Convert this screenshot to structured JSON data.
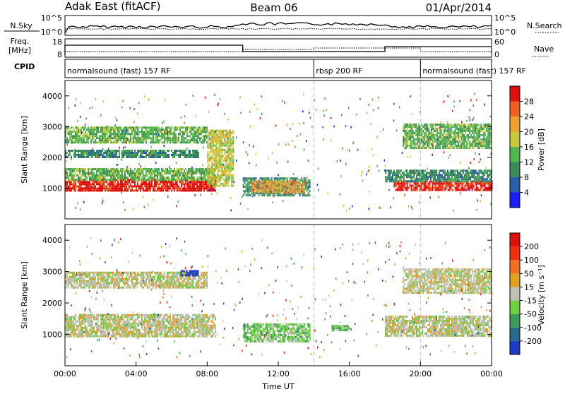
{
  "header": {
    "radar": "Adak East (fitACF)",
    "beam": "Beam 06",
    "date": "01/Apr/2014"
  },
  "noise_panel": {
    "left_label": "N.Sky",
    "left_ticks": [
      "10^5",
      "10^0"
    ],
    "right_ticks": [
      "10^5",
      "10^0"
    ],
    "right_label": "N.Search"
  },
  "freq_panel": {
    "left_label_1": "Freq.",
    "left_label_2": "[MHz]",
    "left_ticks": [
      "18",
      "8"
    ],
    "right_ticks": [
      "60",
      "0"
    ],
    "right_label": "Nave"
  },
  "cpid_panel": {
    "label": "CPID",
    "segments": [
      {
        "text": "normalsound (fast) 157 RF",
        "start": 0,
        "end": 14
      },
      {
        "text": "rbsp 200 RF",
        "start": 14,
        "end": 20
      },
      {
        "text": "normalsound (fast) 157 RF",
        "start": 20,
        "end": 24
      }
    ]
  },
  "power_panel": {
    "ylabel": "Slant Range [km]",
    "yticks": [
      "1000",
      "2000",
      "3000",
      "4000"
    ],
    "colorbar_label": "Power [dB]",
    "colorbar_ticks": [
      "4",
      "8",
      "12",
      "16",
      "20",
      "24",
      "28"
    ],
    "colors": [
      "#1c1cff",
      "#2a5fa8",
      "#3c8c5a",
      "#50b850",
      "#c8c83c",
      "#f0a030",
      "#f06020",
      "#e01010"
    ]
  },
  "velocity_panel": {
    "ylabel": "Slant Range [km]",
    "yticks": [
      "1000",
      "2000",
      "3000",
      "4000"
    ],
    "colorbar_label": "Velocity [m s⁻¹]",
    "colorbar_ticks": [
      "200",
      "100",
      "50",
      "15",
      "-15",
      "-50",
      "-100",
      "-200"
    ],
    "colors": [
      "#1c3cc8",
      "#2a6a8c",
      "#3c9c5a",
      "#6cd040",
      "#c0c0b8",
      "#e0a020",
      "#f07020",
      "#f03010",
      "#e01010"
    ]
  },
  "time_axis": {
    "label": "Time UT",
    "ticks": [
      "00:00",
      "04:00",
      "08:00",
      "12:00",
      "16:00",
      "20:00",
      "00:00"
    ]
  },
  "chart_data": {
    "type": "heatmap",
    "title": "Adak East (fitACF)",
    "x_unit": "hours UT",
    "xlim": [
      0,
      24
    ],
    "ylim": [
      0,
      4500
    ],
    "power_bands": [
      {
        "x0": 0,
        "x1": 8.5,
        "y0": 950,
        "y1": 1300,
        "level": 7
      },
      {
        "x0": 0,
        "x1": 8.5,
        "y0": 1300,
        "y1": 1650,
        "level": 3
      },
      {
        "x0": 0,
        "x1": 7.5,
        "y0": 2000,
        "y1": 2250,
        "level": 2
      },
      {
        "x0": 0,
        "x1": 8,
        "y0": 2500,
        "y1": 3000,
        "level": 3
      },
      {
        "x0": 8,
        "x1": 9.5,
        "y0": 1100,
        "y1": 2900,
        "level": 4
      },
      {
        "x0": 10,
        "x1": 13.8,
        "y0": 780,
        "y1": 1350,
        "level": 2
      },
      {
        "x0": 10.5,
        "x1": 13.5,
        "y0": 900,
        "y1": 1250,
        "level": 5
      },
      {
        "x0": 18.5,
        "x1": 24,
        "y0": 950,
        "y1": 1250,
        "level": 7
      },
      {
        "x0": 18,
        "x1": 24,
        "y0": 1250,
        "y1": 1600,
        "level": 2
      },
      {
        "x0": 19,
        "x1": 24,
        "y0": 2300,
        "y1": 3100,
        "level": 3
      }
    ],
    "velocity_bands": [
      {
        "x0": 0,
        "x1": 8.5,
        "y0": 950,
        "y1": 1650,
        "level": 4
      },
      {
        "x0": 0,
        "x1": 8,
        "y0": 2500,
        "y1": 3000,
        "level": 4
      },
      {
        "x0": 6.5,
        "x1": 7.5,
        "y0": 2850,
        "y1": 3050,
        "level": 0
      },
      {
        "x0": 10,
        "x1": 13.8,
        "y0": 800,
        "y1": 1350,
        "level": 3
      },
      {
        "x0": 15,
        "x1": 16,
        "y0": 1100,
        "y1": 1300,
        "level": 3
      },
      {
        "x0": 18,
        "x1": 24,
        "y0": 950,
        "y1": 1600,
        "level": 4
      },
      {
        "x0": 19,
        "x1": 24,
        "y0": 2300,
        "y1": 3100,
        "level": 4
      }
    ]
  }
}
